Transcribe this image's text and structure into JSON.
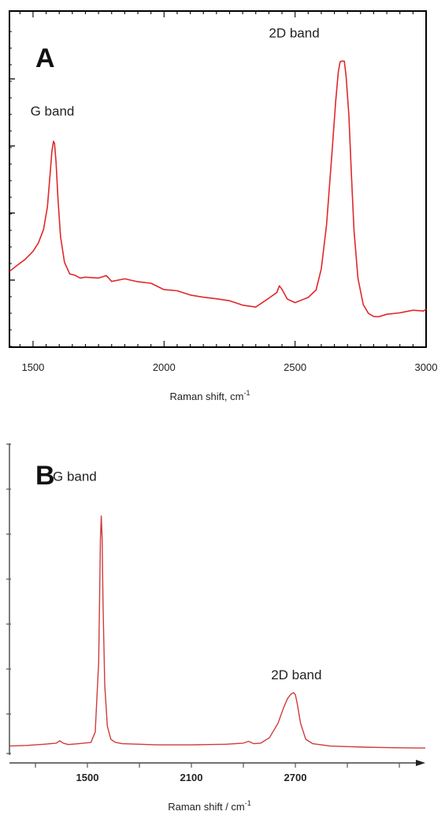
{
  "chart_data": [
    {
      "type": "line",
      "panel_label": "A",
      "xlabel": "Raman shift, cm",
      "xlabel_sup": "-1",
      "xlim": [
        1410,
        3000
      ],
      "xticks": [
        1500,
        2000,
        2500,
        3000
      ],
      "ylabel": "",
      "ylim": [
        0,
        1
      ],
      "line_color": "#e0282a",
      "annotations": [
        {
          "text": "G band",
          "x": 1490,
          "y": 0.72
        },
        {
          "text": "2D band",
          "x": 2400,
          "y": 0.98
        }
      ],
      "series": [
        {
          "x": [
            1410,
            1440,
            1470,
            1500,
            1520,
            1540,
            1555,
            1565,
            1572,
            1578,
            1582,
            1588,
            1595,
            1605,
            1620,
            1640,
            1660,
            1680,
            1700,
            1750,
            1780,
            1800,
            1850,
            1900,
            1950,
            2000,
            2050,
            2100,
            2150,
            2200,
            2250,
            2300,
            2350,
            2400,
            2430,
            2440,
            2450,
            2470,
            2500,
            2550,
            2580,
            2600,
            2620,
            2640,
            2655,
            2665,
            2672,
            2680,
            2688,
            2695,
            2705,
            2715,
            2725,
            2740,
            2760,
            2780,
            2800,
            2820,
            2850,
            2900,
            2950,
            2990,
            3000
          ],
          "y": [
            0.2,
            0.22,
            0.245,
            0.27,
            0.295,
            0.34,
            0.42,
            0.52,
            0.6,
            0.635,
            0.63,
            0.56,
            0.44,
            0.32,
            0.23,
            0.195,
            0.185,
            0.182,
            0.18,
            0.178,
            0.19,
            0.172,
            0.17,
            0.16,
            0.165,
            0.14,
            0.13,
            0.125,
            0.115,
            0.108,
            0.1,
            0.09,
            0.085,
            0.105,
            0.13,
            0.155,
            0.14,
            0.11,
            0.1,
            0.11,
            0.14,
            0.21,
            0.36,
            0.58,
            0.77,
            0.86,
            0.9,
            0.905,
            0.9,
            0.85,
            0.72,
            0.52,
            0.34,
            0.18,
            0.09,
            0.065,
            0.055,
            0.05,
            0.055,
            0.06,
            0.065,
            0.07,
            0.075
          ]
        }
      ]
    },
    {
      "type": "line",
      "panel_label": "B",
      "xlabel": "Raman shift / cm",
      "xlabel_sup": "-1",
      "xlim": [
        1050,
        3450
      ],
      "xticks": [
        1500,
        2100,
        2700
      ],
      "ylabel": "",
      "ylim": [
        0,
        1
      ],
      "line_color": "#cf3b3b",
      "annotations": [
        {
          "text": "G band",
          "x": 1300,
          "y": 0.92
        },
        {
          "text": "2D band",
          "x": 2560,
          "y": 0.24
        }
      ],
      "series": [
        {
          "x": [
            1050,
            1150,
            1250,
            1320,
            1340,
            1360,
            1390,
            1450,
            1520,
            1545,
            1565,
            1575,
            1580,
            1585,
            1590,
            1600,
            1615,
            1635,
            1660,
            1700,
            1800,
            1900,
            2000,
            2100,
            2200,
            2300,
            2400,
            2430,
            2460,
            2500,
            2550,
            2600,
            2630,
            2655,
            2675,
            2690,
            2700,
            2710,
            2730,
            2760,
            2800,
            2900,
            3000,
            3100,
            3200,
            3300,
            3400,
            3450
          ],
          "y": [
            0.012,
            0.014,
            0.018,
            0.022,
            0.03,
            0.022,
            0.017,
            0.02,
            0.024,
            0.06,
            0.3,
            0.72,
            0.8,
            0.72,
            0.5,
            0.22,
            0.08,
            0.035,
            0.025,
            0.02,
            0.018,
            0.016,
            0.016,
            0.016,
            0.017,
            0.018,
            0.022,
            0.028,
            0.02,
            0.022,
            0.04,
            0.09,
            0.14,
            0.175,
            0.19,
            0.195,
            0.188,
            0.16,
            0.09,
            0.035,
            0.02,
            0.012,
            0.01,
            0.008,
            0.007,
            0.006,
            0.005,
            0.005
          ]
        }
      ]
    }
  ]
}
